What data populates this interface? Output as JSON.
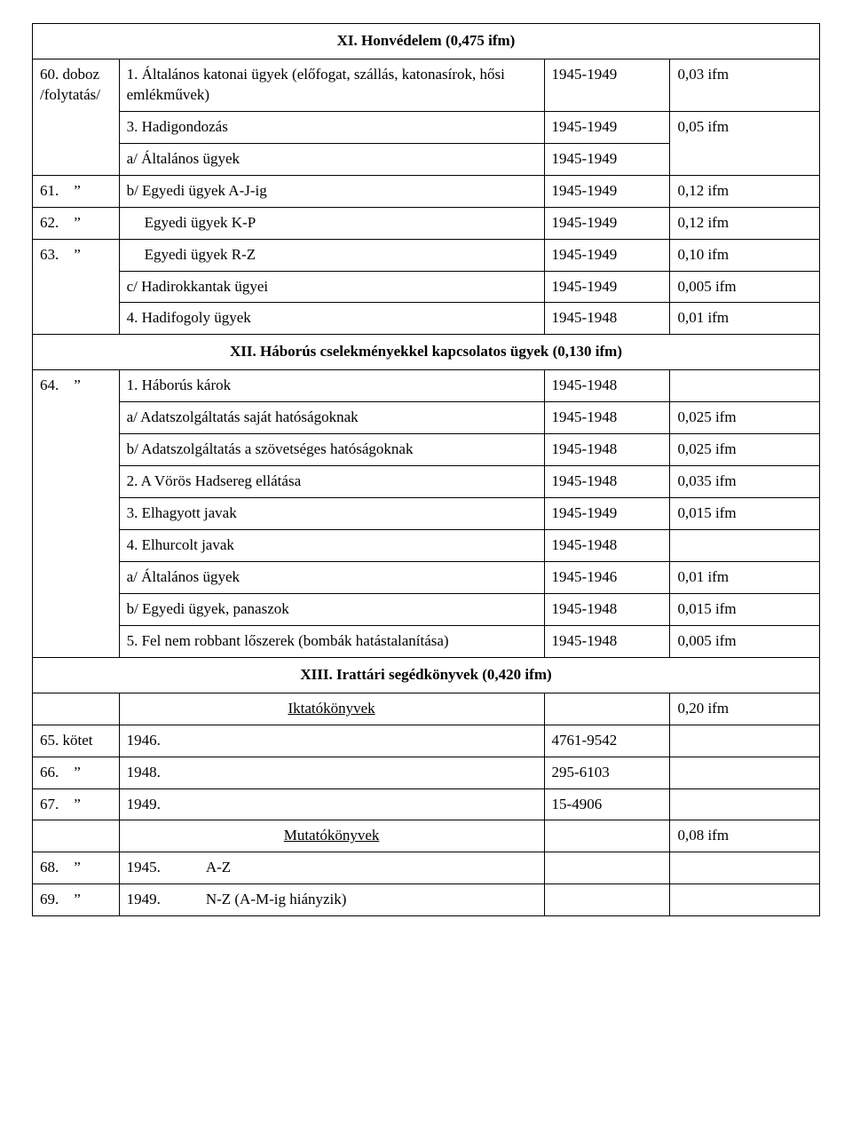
{
  "sections": {
    "xi": {
      "title": "XI. Honvédelem (0,475 ifm)",
      "rows": [
        {
          "num": "60. doboz /folytatás/",
          "desc": "1. Általános katonai ügyek (előfogat, szállás, katonasírok, hősi emlékművek)",
          "year": "1945-1949",
          "ifm": "0,03 ifm"
        },
        {
          "num": "",
          "desc": "3. Hadigondozás",
          "year": "1945-1949",
          "ifm": ""
        },
        {
          "num": "",
          "desc": "a/ Általános ügyek",
          "year": "1945-1949",
          "ifm": "0,05 ifm"
        },
        {
          "num": "61.    ”",
          "desc": "b/ Egyedi ügyek A-J-ig",
          "year": "1945-1949",
          "ifm": "0,12 ifm"
        },
        {
          "num": "62.    ”",
          "desc": "Egyedi ügyek K-P",
          "year": "1945-1949",
          "ifm": "0,12 ifm",
          "indent": 1
        },
        {
          "num": "63.    ”",
          "desc": "Egyedi ügyek R-Z",
          "year": "1945-1949",
          "ifm": "0,10 ifm",
          "indent": 1
        },
        {
          "num": "",
          "desc": "c/ Hadirokkantak ügyei",
          "year": "1945-1949",
          "ifm": "0,005 ifm"
        },
        {
          "num": "",
          "desc": "4. Hadifogoly ügyek",
          "year": "1945-1948",
          "ifm": "0,01 ifm"
        }
      ]
    },
    "xii": {
      "title": "XII. Háborús cselekményekkel kapcsolatos ügyek (0,130 ifm)",
      "rows": [
        {
          "num": "64.    ”",
          "desc": "1. Háborús károk",
          "year": "1945-1948",
          "ifm": ""
        },
        {
          "num": "",
          "desc": "a/ Adatszolgáltatás saját hatóságoknak",
          "year": "1945-1948",
          "ifm": "0,025 ifm"
        },
        {
          "num": "",
          "desc": "b/ Adatszolgáltatás a szövetséges hatóságoknak",
          "year": "1945-1948",
          "ifm": "0,025 ifm"
        },
        {
          "num": "",
          "desc": "2. A Vörös Hadsereg ellátása",
          "year": "1945-1948",
          "ifm": "0,035 ifm"
        },
        {
          "num": "",
          "desc": "3. Elhagyott javak",
          "year": "1945-1949",
          "ifm": "0,015 ifm"
        },
        {
          "num": "",
          "desc": "4. Elhurcolt javak",
          "year": "1945-1948",
          "ifm": ""
        },
        {
          "num": "",
          "desc": "a/ Általános ügyek",
          "year": "1945-1946",
          "ifm": "0,01 ifm"
        },
        {
          "num": "",
          "desc": "b/ Egyedi ügyek, panaszok",
          "year": "1945-1948",
          "ifm": "0,015 ifm"
        },
        {
          "num": "",
          "desc": "5. Fel nem robbant lőszerek (bombák hatástalanítása)",
          "year": "1945-1948",
          "ifm": "0,005 ifm"
        }
      ]
    },
    "xiii": {
      "title": "XIII. Irattári segédkönyvek (0,420 ifm)",
      "sub1": {
        "label": "Iktatókönyvek",
        "ifm": "0,20 ifm"
      },
      "rows1": [
        {
          "num": "65. kötet",
          "desc": "1946.",
          "year": "4761-9542",
          "ifm": ""
        },
        {
          "num": "66.    ”",
          "desc": "1948.",
          "year": "295-6103",
          "ifm": ""
        },
        {
          "num": "67.    ”",
          "desc": "1949.",
          "year": "15-4906",
          "ifm": ""
        }
      ],
      "sub2": {
        "label": "Mutatókönyvek",
        "ifm": "0,08 ifm"
      },
      "rows2": [
        {
          "num": "68.    ”",
          "desc": "1945.",
          "desc2": "A-Z",
          "year": "",
          "ifm": ""
        },
        {
          "num": "69.    ”",
          "desc": "1949.",
          "desc2": "N-Z (A-M-ig hiányzik)",
          "year": "",
          "ifm": ""
        }
      ]
    }
  }
}
